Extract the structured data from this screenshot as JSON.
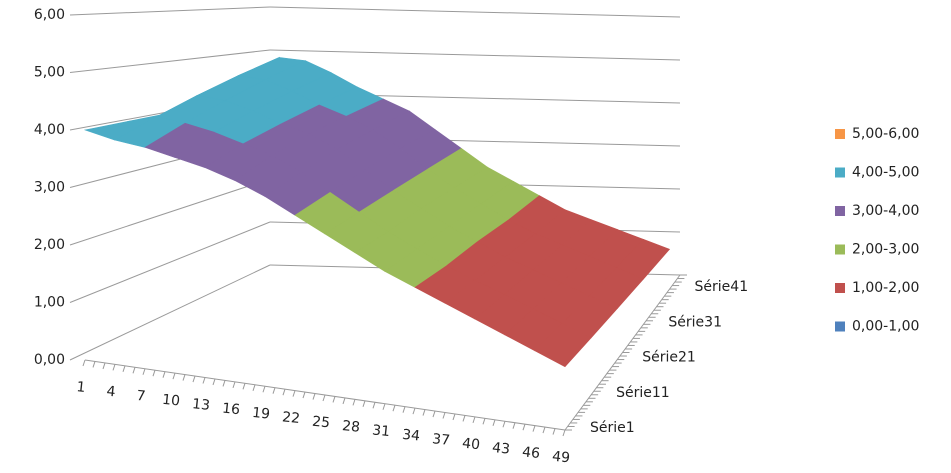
{
  "chart_data": {
    "type": "surface",
    "categories": [
      "1",
      "4",
      "7",
      "10",
      "13",
      "16",
      "19",
      "22",
      "25",
      "28",
      "31",
      "34",
      "37",
      "40",
      "43",
      "46",
      "49"
    ],
    "series": [
      {
        "name": "Série1",
        "values": [
          4.0,
          3.9,
          3.85,
          3.75,
          3.65,
          3.5,
          3.3,
          3.05,
          2.8,
          2.55,
          2.3,
          2.1,
          1.9,
          1.7,
          1.5,
          1.3,
          1.1
        ]
      },
      {
        "name": "Série11",
        "values": [
          4.0,
          4.15,
          4.1,
          4.0,
          3.85,
          3.7,
          3.45,
          3.15,
          2.85,
          2.55,
          2.3,
          2.05,
          1.85,
          1.65,
          1.45,
          1.25,
          1.05
        ]
      },
      {
        "name": "Série21",
        "values": [
          4.0,
          4.4,
          4.35,
          4.2,
          4.0,
          3.85,
          3.6,
          3.25,
          2.9,
          2.6,
          2.3,
          2.05,
          1.8,
          1.6,
          1.4,
          1.2,
          1.0
        ]
      },
      {
        "name": "Série31",
        "values": [
          4.0,
          4.65,
          4.6,
          4.4,
          4.15,
          3.95,
          3.7,
          3.35,
          2.95,
          2.6,
          2.3,
          2.0,
          1.75,
          1.55,
          1.35,
          1.15,
          0.95
        ]
      },
      {
        "name": "Série41",
        "values": [
          4.0,
          4.9,
          4.85,
          4.6,
          4.3,
          4.05,
          3.8,
          3.4,
          3.0,
          2.6,
          2.3,
          2.0,
          1.7,
          1.5,
          1.3,
          1.1,
          0.9
        ]
      }
    ],
    "ylim": [
      0,
      6
    ],
    "yticks": [
      {
        "value": 0,
        "label": "0,00"
      },
      {
        "value": 1,
        "label": "1,00"
      },
      {
        "value": 2,
        "label": "2,00"
      },
      {
        "value": 3,
        "label": "3,00"
      },
      {
        "value": 4,
        "label": "4,00"
      },
      {
        "value": 5,
        "label": "5,00"
      },
      {
        "value": 6,
        "label": "6,00"
      }
    ],
    "grid": true,
    "bands": [
      {
        "name": "5,00-6,00",
        "color": "#f79646",
        "from": 5,
        "to": 6
      },
      {
        "name": "4,00-5,00",
        "color": "#4bacc6",
        "from": 4,
        "to": 5
      },
      {
        "name": "3,00-4,00",
        "color": "#8064a2",
        "from": 3,
        "to": 4
      },
      {
        "name": "2,00-3,00",
        "color": "#9bbb59",
        "from": 2,
        "to": 3
      },
      {
        "name": "1,00-2,00",
        "color": "#c0504d",
        "from": 1,
        "to": 2
      },
      {
        "name": "0,00-1,00",
        "color": "#4f81bd",
        "from": 0,
        "to": 1
      }
    ]
  }
}
